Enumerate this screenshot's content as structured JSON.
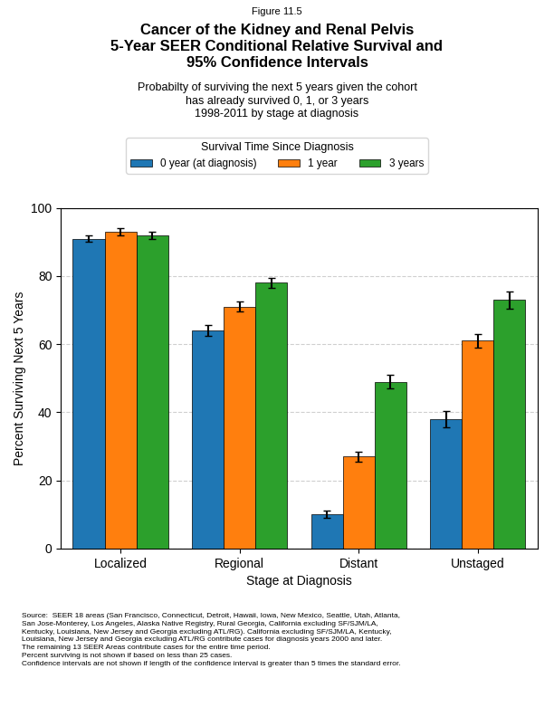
{
  "chart_data": {
    "type": "bar",
    "title": "Cancer of the Kidney and Renal Pelvis\n5-Year SEER Conditional Relative Survival and\n95% Confidence Intervals",
    "subtitle": "Probabilty of surviving the next 5 years given the cohort\nhas already survived 0, 1, or 3 years\n1998-2011 by stage at diagnosis",
    "annotations": [
      "Figure 11.5",
      "Source:  SEER 18 areas (San Francisco, Connecticut, Detroit, Hawaii, Iowa, New Mexico, Seattle, Utah, Atlanta,\nSan Jose-Monterey, Los Angeles, Alaska Native Registry, Rural Georgia, California excluding SF/SJM/LA,\nKentucky, Louisiana, New Jersey and Georgia excluding ATL/RG). California excluding SF/SJM/LA, Kentucky,\nLouisiana, New Jersey and Georgia excluding ATL/RG contribute cases for diagnosis years 2000 and later.\nThe remaining 13 SEER Areas contribute cases for the entire time period.\nPercent surviving is not shown if based on less than 25 cases.\nConfidence intervals are not shown if length of the confidence interval is greater than 5 times the standard error."
    ],
    "legend_title": "Survival Time Since Diagnosis",
    "xlabel": "Stage at Diagnosis",
    "ylabel": "Percent Surviving Next 5 Years",
    "categories": [
      "Localized",
      "Regional",
      "Distant",
      "Unstaged"
    ],
    "series": [
      {
        "name": "0 year (at diagnosis)",
        "values": [
          91.0,
          64.0,
          10.0,
          38.0
        ],
        "errors": [
          1.0,
          1.5,
          1.0,
          2.5
        ]
      },
      {
        "name": "1 year",
        "values": [
          93.0,
          71.0,
          27.0,
          61.0
        ],
        "errors": [
          1.0,
          1.5,
          1.5,
          2.0
        ]
      },
      {
        "name": "3 years",
        "values": [
          92.0,
          78.0,
          49.0,
          73.0
        ],
        "errors": [
          1.0,
          1.5,
          2.0,
          2.5
        ]
      }
    ],
    "ylim": [
      0,
      100
    ],
    "yticks": [
      0,
      20,
      40,
      60,
      80,
      100
    ],
    "grid": true,
    "legend": "upper center"
  }
}
